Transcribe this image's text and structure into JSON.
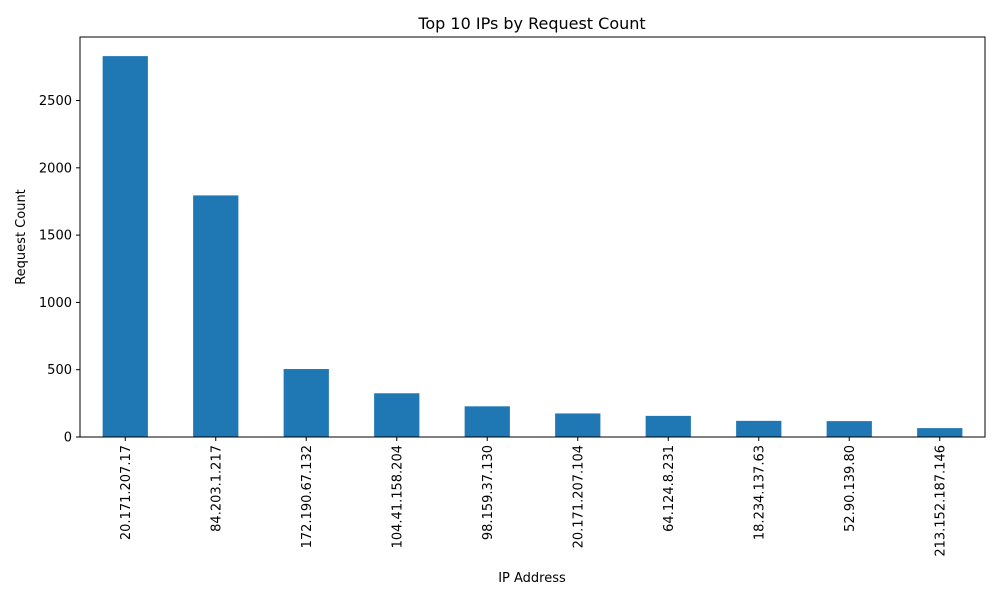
{
  "chart_data": {
    "type": "bar",
    "title": "Top 10 IPs by Request Count",
    "xlabel": "IP Address",
    "ylabel": "Request Count",
    "categories": [
      "20.171.207.17",
      "84.203.1.217",
      "172.190.67.132",
      "104.41.158.204",
      "98.159.37.130",
      "20.171.207.104",
      "64.124.8.231",
      "18.234.137.63",
      "52.90.139.80",
      "213.152.187.146"
    ],
    "values": [
      2830,
      1795,
      505,
      325,
      228,
      175,
      157,
      120,
      118,
      66
    ],
    "ylim": [
      0,
      2972
    ],
    "yticks": [
      0,
      500,
      1000,
      1500,
      2000,
      2500
    ],
    "bar_color": "#1f77b4",
    "grid": false,
    "legend": "none"
  }
}
